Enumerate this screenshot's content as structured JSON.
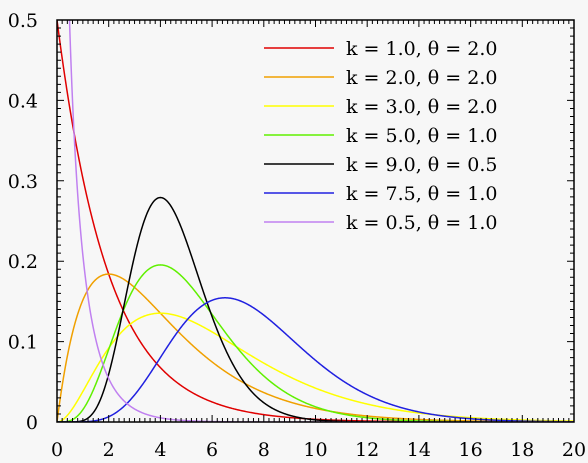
{
  "chart_data": {
    "type": "line",
    "title": "",
    "xlabel": "",
    "ylabel": "",
    "xlim": [
      0,
      20
    ],
    "ylim": [
      0,
      0.5
    ],
    "x_ticks": [
      0,
      2,
      4,
      6,
      8,
      10,
      12,
      14,
      16,
      18,
      20
    ],
    "y_ticks": [
      0,
      0.1,
      0.2,
      0.3,
      0.4,
      0.5
    ],
    "x_tick_labels": [
      "0",
      "2",
      "4",
      "6",
      "8",
      "10",
      "12",
      "14",
      "16",
      "18",
      "20"
    ],
    "y_tick_labels": [
      "0",
      "0.1",
      "0.2",
      "0.3",
      "0.4",
      "0.5"
    ],
    "grid": false,
    "legend_position": "top-right",
    "series": [
      {
        "name": "k = 1.0, θ = 2.0",
        "k": 1.0,
        "theta": 2.0,
        "color": "#e00000"
      },
      {
        "name": "k = 2.0, θ = 2.0",
        "k": 2.0,
        "theta": 2.0,
        "color": "#f0a000"
      },
      {
        "name": "k = 3.0, θ = 2.0",
        "k": 3.0,
        "theta": 2.0,
        "color": "#ffff00"
      },
      {
        "name": "k = 5.0, θ = 1.0",
        "k": 5.0,
        "theta": 1.0,
        "color": "#60f000"
      },
      {
        "name": "k = 9.0, θ = 0.5",
        "k": 9.0,
        "theta": 0.5,
        "color": "#000000"
      },
      {
        "name": "k = 7.5, θ = 1.0",
        "k": 7.5,
        "theta": 1.0,
        "color": "#2020e0"
      },
      {
        "name": "k = 0.5, θ = 1.0",
        "k": 0.5,
        "theta": 1.0,
        "color": "#c080f0"
      }
    ]
  }
}
